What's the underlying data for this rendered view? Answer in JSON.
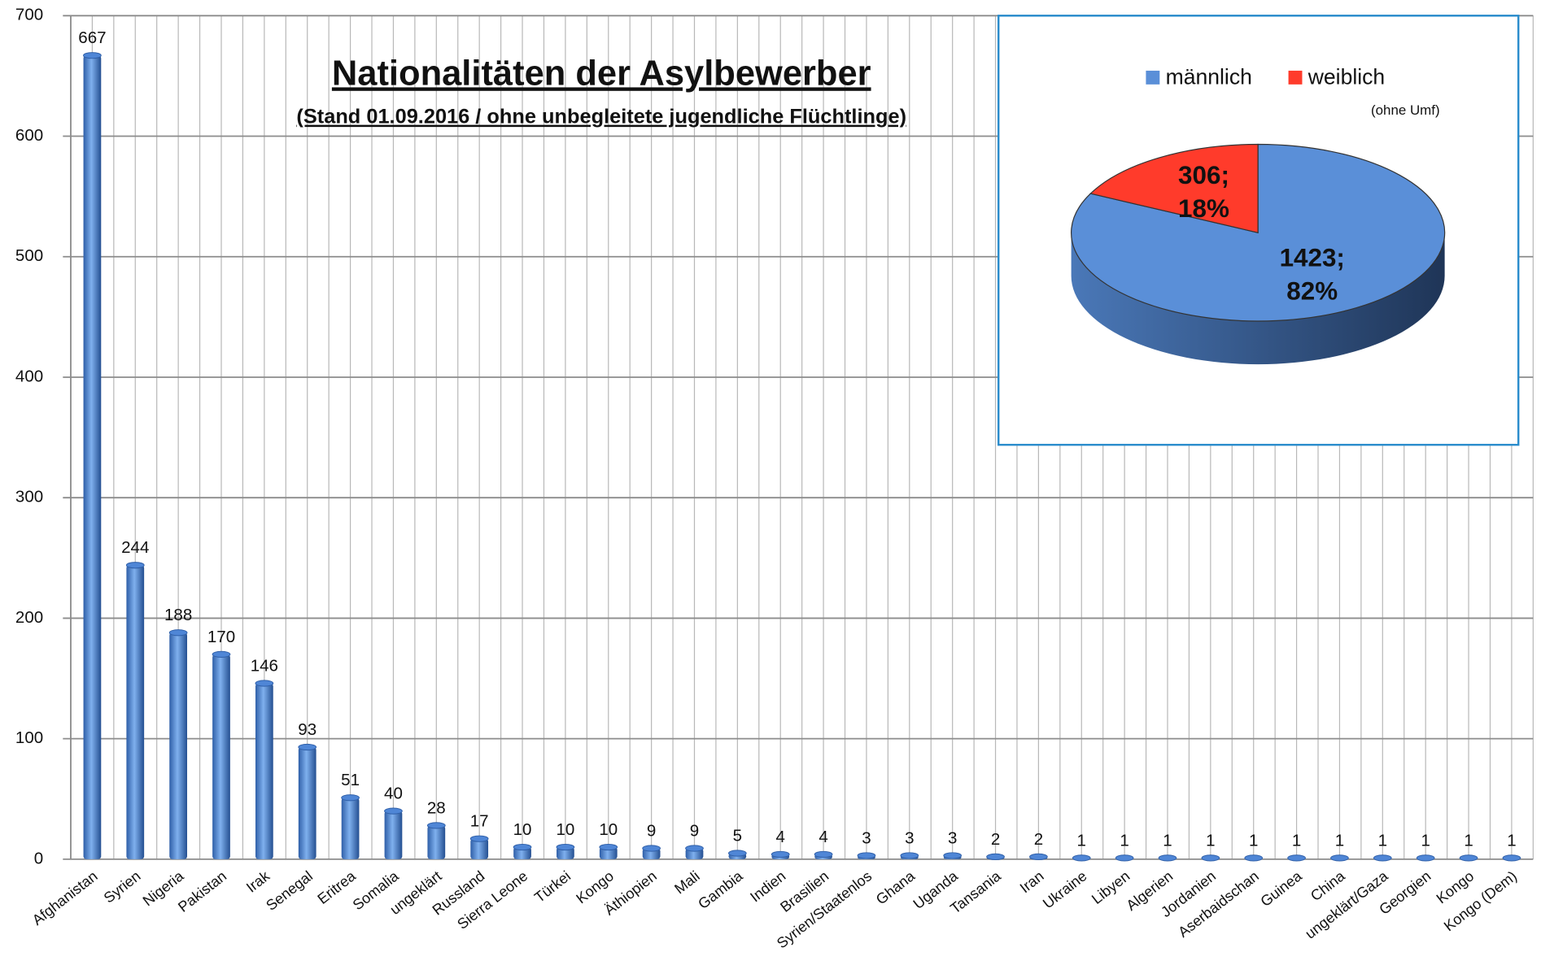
{
  "chart_data": [
    {
      "type": "bar",
      "title": "Nationalitäten der Asylbewerber",
      "subtitle": "(Stand 01.09.2016 / ohne unbegleitete jugendliche Flüchtlinge)",
      "categories": [
        "Afghanistan",
        "Syrien",
        "Nigeria",
        "Pakistan",
        "Irak",
        "Senegal",
        "Eritrea",
        "Somalia",
        "ungeklärt",
        "Russland",
        "Sierra Leone",
        "Türkei",
        "Kongo",
        "Äthiopien",
        "Mali",
        "Gambia",
        "Indien",
        "Brasilien",
        "Syrien/Staatenlos",
        "Ghana",
        "Uganda",
        "Tansania",
        "Iran",
        "Ukraine",
        "Libyen",
        "Algerien",
        "Jordanien",
        "Aserbaidschan",
        "Guinea",
        "China",
        "ungeklärt/Gaza",
        "Georgien",
        "Kongo",
        "Kongo (Dem)"
      ],
      "values": [
        667,
        244,
        188,
        170,
        146,
        93,
        51,
        40,
        28,
        17,
        10,
        10,
        10,
        9,
        9,
        5,
        4,
        4,
        3,
        3,
        3,
        2,
        2,
        1,
        1,
        1,
        1,
        1,
        1,
        1,
        1,
        1,
        1,
        1
      ],
      "color": "#4f86d6",
      "ylim": [
        0,
        700
      ],
      "yticks": [
        0,
        100,
        200,
        300,
        400,
        500,
        600,
        700
      ],
      "grid": true
    },
    {
      "type": "pie",
      "categories": [
        "männlich",
        "weiblich"
      ],
      "values": [
        1423,
        306
      ],
      "value_labels": [
        "1423; 82%",
        "306; 18%"
      ],
      "colors": [
        "#5a8fd8",
        "#ff3b2b"
      ],
      "note": "(ohne Umf)",
      "legend": "top"
    }
  ]
}
